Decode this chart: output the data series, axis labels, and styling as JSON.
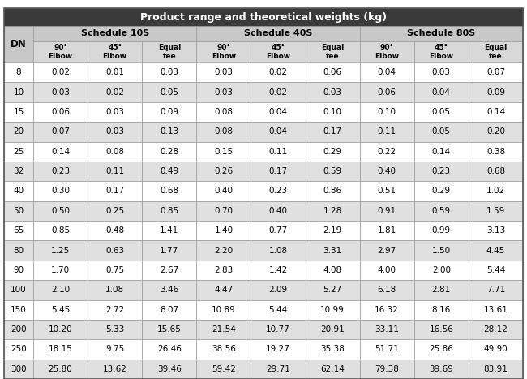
{
  "title": "Product range and theoretical weights (kg)",
  "schedule_headers": [
    "Schedule 10S",
    "Schedule 40S",
    "Schedule 80S"
  ],
  "col_headers": [
    "90°\nElbow",
    "45°\nElbow",
    "Equal\ntee"
  ],
  "dn_label": "DN",
  "dns": [
    8,
    10,
    15,
    20,
    25,
    32,
    40,
    50,
    65,
    80,
    90,
    100,
    150,
    200,
    250,
    300
  ],
  "data": [
    [
      0.02,
      0.01,
      0.03,
      0.03,
      0.02,
      0.06,
      0.04,
      0.03,
      0.07
    ],
    [
      0.03,
      0.02,
      0.05,
      0.03,
      0.02,
      0.03,
      0.06,
      0.04,
      0.09
    ],
    [
      0.06,
      0.03,
      0.09,
      0.08,
      0.04,
      0.1,
      0.1,
      0.05,
      0.14
    ],
    [
      0.07,
      0.03,
      0.13,
      0.08,
      0.04,
      0.17,
      0.11,
      0.05,
      0.2
    ],
    [
      0.14,
      0.08,
      0.28,
      0.15,
      0.11,
      0.29,
      0.22,
      0.14,
      0.38
    ],
    [
      0.23,
      0.11,
      0.49,
      0.26,
      0.17,
      0.59,
      0.4,
      0.23,
      0.68
    ],
    [
      0.3,
      0.17,
      0.68,
      0.4,
      0.23,
      0.86,
      0.51,
      0.29,
      1.02
    ],
    [
      0.5,
      0.25,
      0.85,
      0.7,
      0.4,
      1.28,
      0.91,
      0.59,
      1.59
    ],
    [
      0.85,
      0.48,
      1.41,
      1.4,
      0.77,
      2.19,
      1.81,
      0.99,
      3.13
    ],
    [
      1.25,
      0.63,
      1.77,
      2.2,
      1.08,
      3.31,
      2.97,
      1.5,
      4.45
    ],
    [
      1.7,
      0.75,
      2.67,
      2.83,
      1.42,
      4.08,
      4.0,
      2.0,
      5.44
    ],
    [
      2.1,
      1.08,
      3.46,
      4.47,
      2.09,
      5.27,
      6.18,
      2.81,
      7.71
    ],
    [
      5.45,
      2.72,
      8.07,
      10.89,
      5.44,
      10.99,
      16.32,
      8.16,
      13.61
    ],
    [
      10.2,
      5.33,
      15.65,
      21.54,
      10.77,
      20.91,
      33.11,
      16.56,
      28.12
    ],
    [
      18.15,
      9.75,
      26.46,
      38.56,
      19.27,
      35.38,
      51.71,
      25.86,
      49.9
    ],
    [
      25.8,
      13.62,
      39.46,
      59.42,
      29.71,
      62.14,
      79.38,
      39.69,
      83.91
    ]
  ],
  "title_bg": "#3a3a3a",
  "title_color": "#ffffff",
  "header2_bg": "#c8c8c8",
  "header2_color": "#000000",
  "header3_bg": "#d8d8d8",
  "header3_color": "#000000",
  "row_bg_white": "#ffffff",
  "row_bg_gray": "#e0e0e0",
  "row_color": "#000000",
  "border_color": "#999999",
  "figwidth": 6.5,
  "figheight": 4.67,
  "dpi": 100
}
